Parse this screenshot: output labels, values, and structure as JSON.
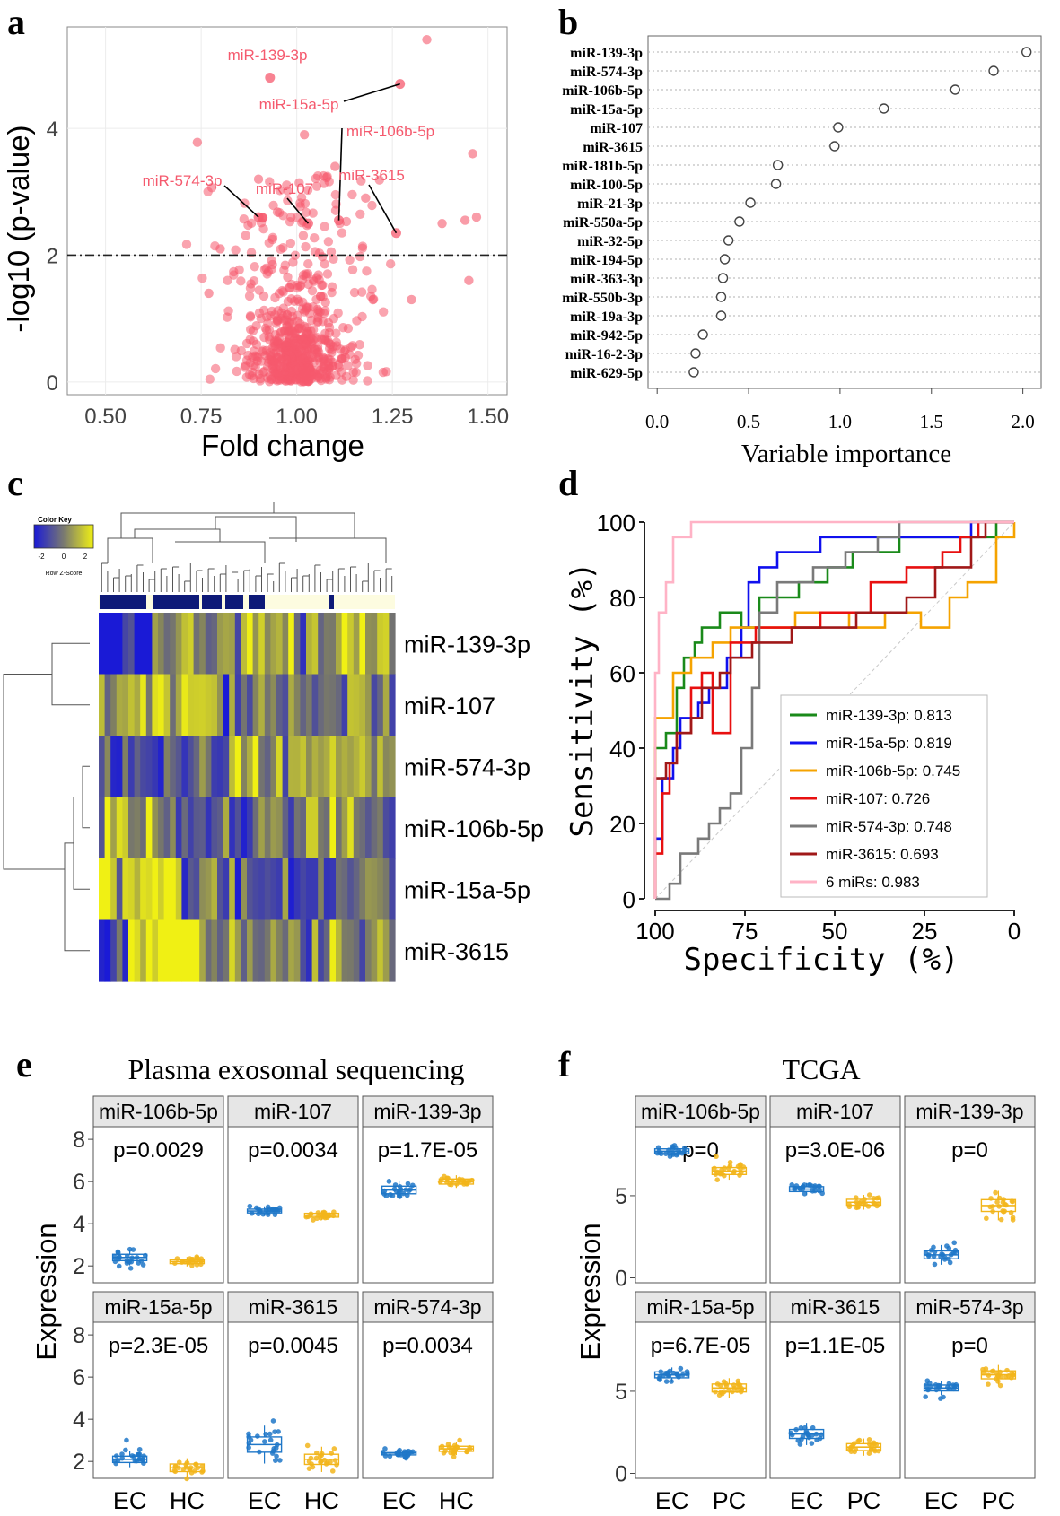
{
  "panel_labels": {
    "a": "a",
    "b": "b",
    "c": "c",
    "d": "d",
    "e": "e",
    "f": "f"
  },
  "colors": {
    "volcano_point": "#f55a6e",
    "ec_blue": "#1f77c8",
    "hc_yellow": "#f2b51b",
    "heat_low": "#1a1ad6",
    "heat_high": "#f0f014",
    "dark_navy": "#0e1a78",
    "cream": "#fdfce0"
  },
  "chart_data": [
    {
      "id": "a",
      "type": "scatter",
      "title": "",
      "xlabel": "Fold change",
      "ylabel": "-log10 (p-value)",
      "xlim": [
        0.4,
        1.55
      ],
      "ylim": [
        -0.2,
        5.6
      ],
      "xticks": [
        "0.50",
        "0.75",
        "1.00",
        "1.25",
        "1.50"
      ],
      "yticks": [
        "0",
        "2",
        "4"
      ],
      "threshold": 2.0,
      "labeled_points": [
        {
          "label": "miR-139-3p",
          "x": 0.93,
          "y": 4.8
        },
        {
          "label": "miR-15a-5p",
          "x": 1.27,
          "y": 4.7
        },
        {
          "label": "miR-106b-5p",
          "x": 1.11,
          "y": 2.55
        },
        {
          "label": "miR-574-3p",
          "x": 0.9,
          "y": 2.6
        },
        {
          "label": "miR-107",
          "x": 1.03,
          "y": 2.5
        },
        {
          "label": "miR-3615",
          "x": 1.26,
          "y": 2.35
        }
      ]
    },
    {
      "id": "b",
      "type": "scatter",
      "xlabel": "Variable importance",
      "xlim": [
        -0.05,
        2.1
      ],
      "xticks": [
        "0.0",
        "0.5",
        "1.0",
        "1.5",
        "2.0"
      ],
      "categories": [
        "miR-139-3p",
        "miR-574-3p",
        "miR-106b-5p",
        "miR-15a-5p",
        "miR-107",
        "miR-3615",
        "miR-181b-5p",
        "miR-100-5p",
        "miR-21-3p",
        "miR-550a-5p",
        "miR-32-5p",
        "miR-194-5p",
        "miR-363-3p",
        "miR-550b-3p",
        "miR-19a-3p",
        "miR-942-5p",
        "miR-16-2-3p",
        "miR-629-5p"
      ],
      "values": [
        2.02,
        1.84,
        1.63,
        1.24,
        0.99,
        0.97,
        0.66,
        0.65,
        0.51,
        0.45,
        0.39,
        0.37,
        0.36,
        0.35,
        0.35,
        0.25,
        0.21,
        0.2
      ]
    },
    {
      "id": "c",
      "type": "heatmap",
      "color_key_title": "Color Key",
      "color_key_ticks": [
        "-2",
        "0",
        "2"
      ],
      "color_key_label": "Row Z-Score",
      "rows": [
        "miR-139-3p",
        "miR-107",
        "miR-574-3p",
        "miR-106b-5p",
        "miR-15a-5p",
        "miR-3615"
      ],
      "columns": 50
    },
    {
      "id": "d",
      "type": "line",
      "xlabel": "Specificity (%)",
      "ylabel": "Sensitivity (%)",
      "xticks": [
        "100",
        "75",
        "50",
        "25",
        "0"
      ],
      "yticks": [
        "0",
        "20",
        "40",
        "60",
        "80",
        "100"
      ],
      "series": [
        {
          "name": "miR-139-3p",
          "auc": "0.813",
          "color": "#1a8a1a",
          "points": [
            [
              100,
              0
            ],
            [
              100,
              40
            ],
            [
              97,
              40
            ],
            [
              97,
              44
            ],
            [
              94,
              44
            ],
            [
              94,
              56
            ],
            [
              92,
              56
            ],
            [
              92,
              64
            ],
            [
              89,
              64
            ],
            [
              89,
              68
            ],
            [
              87,
              68
            ],
            [
              87,
              72
            ],
            [
              82,
              72
            ],
            [
              82,
              76
            ],
            [
              76,
              76
            ],
            [
              76,
              72
            ],
            [
              71,
              72
            ],
            [
              71,
              80
            ],
            [
              60,
              80
            ],
            [
              60,
              84
            ],
            [
              52,
              84
            ],
            [
              52,
              88
            ],
            [
              45,
              88
            ],
            [
              45,
              92
            ],
            [
              32,
              92
            ],
            [
              32,
              96
            ],
            [
              5,
              96
            ],
            [
              5,
              100
            ],
            [
              0,
              100
            ]
          ]
        },
        {
          "name": "miR-15a-5p",
          "auc": "0.819",
          "color": "#1010ee",
          "points": [
            [
              100,
              0
            ],
            [
              100,
              16
            ],
            [
              98,
              16
            ],
            [
              98,
              32
            ],
            [
              95,
              32
            ],
            [
              95,
              40
            ],
            [
              93,
              40
            ],
            [
              93,
              48
            ],
            [
              88,
              48
            ],
            [
              88,
              52
            ],
            [
              85,
              52
            ],
            [
              85,
              56
            ],
            [
              80,
              56
            ],
            [
              80,
              64
            ],
            [
              76,
              64
            ],
            [
              76,
              72
            ],
            [
              74,
              72
            ],
            [
              74,
              84
            ],
            [
              71,
              84
            ],
            [
              71,
              88
            ],
            [
              66,
              88
            ],
            [
              66,
              92
            ],
            [
              54,
              92
            ],
            [
              54,
              96
            ],
            [
              12,
              96
            ],
            [
              12,
              100
            ],
            [
              0,
              100
            ]
          ]
        },
        {
          "name": "miR-106b-5p",
          "auc": "0.745",
          "color": "#f5a300",
          "points": [
            [
              100,
              0
            ],
            [
              100,
              48
            ],
            [
              95,
              48
            ],
            [
              95,
              60
            ],
            [
              90,
              60
            ],
            [
              90,
              64
            ],
            [
              84,
              64
            ],
            [
              84,
              68
            ],
            [
              79,
              68
            ],
            [
              79,
              72
            ],
            [
              61,
              72
            ],
            [
              61,
              76
            ],
            [
              46,
              76
            ],
            [
              46,
              72
            ],
            [
              36,
              72
            ],
            [
              36,
              76
            ],
            [
              26,
              76
            ],
            [
              26,
              72
            ],
            [
              18,
              72
            ],
            [
              18,
              80
            ],
            [
              13,
              80
            ],
            [
              13,
              84
            ],
            [
              5,
              84
            ],
            [
              5,
              96
            ],
            [
              0,
              96
            ],
            [
              0,
              100
            ]
          ]
        },
        {
          "name": "miR-107",
          "auc": "0.726",
          "color": "#e81010",
          "points": [
            [
              100,
              0
            ],
            [
              100,
              12
            ],
            [
              98,
              12
            ],
            [
              98,
              28
            ],
            [
              96,
              28
            ],
            [
              96,
              36
            ],
            [
              94,
              36
            ],
            [
              94,
              44
            ],
            [
              90,
              44
            ],
            [
              90,
              56
            ],
            [
              87,
              56
            ],
            [
              87,
              60
            ],
            [
              84,
              60
            ],
            [
              84,
              44
            ],
            [
              79,
              44
            ],
            [
              79,
              68
            ],
            [
              72,
              68
            ],
            [
              72,
              72
            ],
            [
              54,
              72
            ],
            [
              54,
              76
            ],
            [
              40,
              76
            ],
            [
              40,
              84
            ],
            [
              30,
              84
            ],
            [
              30,
              88
            ],
            [
              20,
              88
            ],
            [
              20,
              92
            ],
            [
              15,
              92
            ],
            [
              15,
              96
            ],
            [
              10,
              96
            ],
            [
              10,
              100
            ],
            [
              0,
              100
            ]
          ]
        },
        {
          "name": "miR-574-3p",
          "auc": "0.748",
          "color": "#7a7a7a",
          "points": [
            [
              100,
              0
            ],
            [
              96,
              0
            ],
            [
              96,
              4
            ],
            [
              93,
              4
            ],
            [
              93,
              12
            ],
            [
              88,
              12
            ],
            [
              88,
              16
            ],
            [
              85,
              16
            ],
            [
              85,
              20
            ],
            [
              82,
              20
            ],
            [
              82,
              24
            ],
            [
              79,
              24
            ],
            [
              79,
              28
            ],
            [
              76,
              28
            ],
            [
              76,
              40
            ],
            [
              73,
              40
            ],
            [
              73,
              56
            ],
            [
              71,
              56
            ],
            [
              71,
              76
            ],
            [
              66,
              76
            ],
            [
              66,
              84
            ],
            [
              56,
              84
            ],
            [
              56,
              88
            ],
            [
              47,
              88
            ],
            [
              47,
              92
            ],
            [
              38,
              92
            ],
            [
              38,
              96
            ],
            [
              32,
              96
            ],
            [
              32,
              100
            ],
            [
              0,
              100
            ]
          ]
        },
        {
          "name": "miR-3615",
          "auc": "0.693",
          "color": "#a01818",
          "points": [
            [
              100,
              0
            ],
            [
              100,
              32
            ],
            [
              97,
              32
            ],
            [
              97,
              36
            ],
            [
              94,
              36
            ],
            [
              94,
              44
            ],
            [
              90,
              44
            ],
            [
              90,
              48
            ],
            [
              87,
              48
            ],
            [
              87,
              56
            ],
            [
              82,
              56
            ],
            [
              82,
              60
            ],
            [
              79,
              60
            ],
            [
              79,
              64
            ],
            [
              73,
              64
            ],
            [
              73,
              68
            ],
            [
              62,
              68
            ],
            [
              62,
              72
            ],
            [
              44,
              72
            ],
            [
              44,
              76
            ],
            [
              30,
              76
            ],
            [
              30,
              80
            ],
            [
              22,
              80
            ],
            [
              22,
              88
            ],
            [
              12,
              88
            ],
            [
              12,
              96
            ],
            [
              8,
              96
            ],
            [
              8,
              100
            ],
            [
              0,
              100
            ]
          ]
        },
        {
          "name": "6 miRs",
          "auc": "0.983",
          "color": "#ffb3c6",
          "points": [
            [
              100,
              0
            ],
            [
              100,
              60
            ],
            [
              99,
              60
            ],
            [
              99,
              76
            ],
            [
              97,
              76
            ],
            [
              97,
              84
            ],
            [
              95,
              84
            ],
            [
              95,
              96
            ],
            [
              90,
              96
            ],
            [
              90,
              100
            ],
            [
              0,
              100
            ]
          ]
        }
      ]
    },
    {
      "id": "e",
      "type": "box",
      "title": "Plasma exosomal sequencing",
      "ylabel": "Expression",
      "groups": [
        "EC",
        "HC"
      ],
      "ylim": [
        1.2,
        8.6
      ],
      "yticks": [
        "2",
        "4",
        "6",
        "8"
      ],
      "facets": [
        {
          "name": "miR-106b-5p",
          "p": "p=0.0029",
          "medians": [
            2.4,
            2.2
          ],
          "spreads": [
            0.25,
            0.15
          ]
        },
        {
          "name": "miR-107",
          "p": "p=0.0034",
          "medians": [
            4.6,
            4.4
          ],
          "spreads": [
            0.15,
            0.15
          ]
        },
        {
          "name": "miR-139-3p",
          "p": "p=1.7E-05",
          "medians": [
            5.6,
            6.0
          ],
          "spreads": [
            0.3,
            0.2
          ]
        },
        {
          "name": "miR-15a-5p",
          "p": "p=2.3E-05",
          "medians": [
            2.1,
            1.7
          ],
          "spreads": [
            0.25,
            0.3
          ]
        },
        {
          "name": "miR-3615",
          "p": "p=0.0045",
          "medians": [
            2.8,
            2.1
          ],
          "spreads": [
            0.6,
            0.4
          ]
        },
        {
          "name": "miR-574-3p",
          "p": "p=0.0034",
          "medians": [
            2.4,
            2.6
          ],
          "spreads": [
            0.15,
            0.2
          ]
        }
      ]
    },
    {
      "id": "f",
      "type": "box",
      "title": "TCGA",
      "ylabel": "Expression",
      "groups": [
        "EC",
        "PC"
      ],
      "ylim": [
        -0.3,
        9.2
      ],
      "yticks": [
        "0",
        "5"
      ],
      "facets": [
        {
          "name": "miR-106b-5p",
          "p": "p=0",
          "medians": [
            7.7,
            6.5
          ],
          "spreads": [
            0.25,
            0.35
          ]
        },
        {
          "name": "miR-107",
          "p": "p=3.0E-06",
          "medians": [
            5.4,
            4.6
          ],
          "spreads": [
            0.25,
            0.3
          ]
        },
        {
          "name": "miR-139-3p",
          "p": "p=0",
          "medians": [
            1.4,
            4.4
          ],
          "spreads": [
            0.4,
            0.6
          ]
        },
        {
          "name": "miR-15a-5p",
          "p": "p=6.7E-05",
          "medians": [
            6.0,
            5.2
          ],
          "spreads": [
            0.3,
            0.4
          ]
        },
        {
          "name": "miR-3615",
          "p": "p=1.1E-05",
          "medians": [
            2.4,
            1.6
          ],
          "spreads": [
            0.45,
            0.35
          ]
        },
        {
          "name": "miR-574-3p",
          "p": "p=0",
          "medians": [
            5.2,
            6.0
          ],
          "spreads": [
            0.3,
            0.4
          ]
        }
      ]
    }
  ]
}
